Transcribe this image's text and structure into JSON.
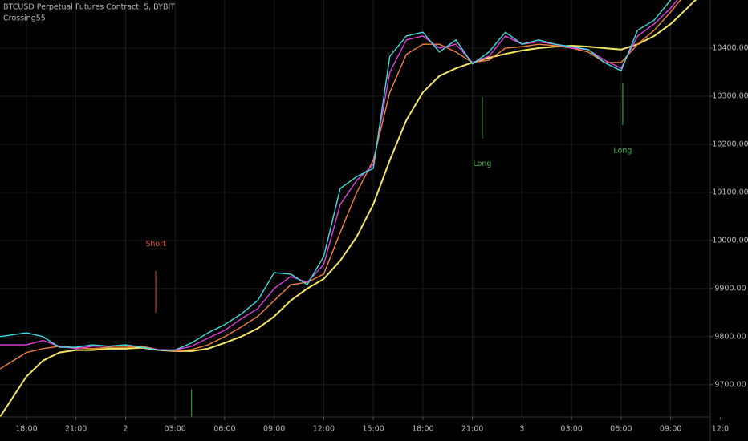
{
  "chart_data": {
    "type": "line",
    "title": "BTCUSD Perpetual Futures Contract, 5, BYBIT",
    "subtitle": "Crossing55",
    "x": [
      -1.6,
      0,
      1,
      2,
      3,
      4,
      5,
      6,
      7,
      8,
      9,
      10,
      11,
      12,
      13,
      14,
      15,
      16,
      17,
      18,
      19,
      20,
      21,
      22,
      23,
      24,
      25,
      26,
      27,
      28,
      29,
      30,
      31,
      32,
      33,
      34,
      35,
      36,
      37,
      38,
      39,
      40,
      41
    ],
    "series": [
      {
        "color": "#f5e663",
        "values": [
          9633,
          9717,
          9750,
          9767,
          9772,
          9772,
          9775,
          9775,
          9777,
          9772,
          9770,
          9770,
          9775,
          9787,
          9800,
          9817,
          9842,
          9875,
          9900,
          9920,
          9958,
          10008,
          10075,
          10167,
          10250,
          10308,
          10342,
          10358,
          10370,
          10380,
          10388,
          10395,
          10400,
          10403,
          10405,
          10403,
          10400,
          10397,
          10408,
          10425,
          10450,
          10483,
          10517
        ]
      },
      {
        "color": "#f2813a",
        "values": [
          9733,
          9767,
          9775,
          9780,
          9777,
          9775,
          9778,
          9778,
          9780,
          9773,
          9770,
          9773,
          9783,
          9800,
          9820,
          9842,
          9875,
          9908,
          9913,
          9930,
          10017,
          10100,
          10167,
          10308,
          10387,
          10408,
          10408,
          10392,
          10370,
          10375,
          10400,
          10403,
          10408,
          10405,
          10400,
          10392,
          10370,
          10370,
          10408,
          10437,
          10475,
          10517,
          10542
        ]
      },
      {
        "color": "#e040e0",
        "values": [
          9783,
          9783,
          9792,
          9780,
          9775,
          9780,
          9780,
          9783,
          9778,
          9773,
          9772,
          9780,
          9797,
          9813,
          9837,
          9858,
          9900,
          9925,
          9913,
          9950,
          10075,
          10125,
          10158,
          10350,
          10417,
          10425,
          10400,
          10408,
          10370,
          10383,
          10425,
          10408,
          10413,
          10408,
          10400,
          10397,
          10375,
          10358,
          10425,
          10450,
          10483,
          10525,
          10550
        ]
      },
      {
        "color": "#3ee0e0",
        "values": [
          9800,
          9808,
          9800,
          9778,
          9778,
          9783,
          9780,
          9783,
          9778,
          9772,
          9772,
          9787,
          9808,
          9825,
          9847,
          9875,
          9933,
          9930,
          9908,
          9967,
          10108,
          10133,
          10150,
          10383,
          10425,
          10433,
          10392,
          10417,
          10367,
          10392,
          10433,
          10408,
          10417,
          10408,
          10403,
          10397,
          10370,
          10353,
          10437,
          10458,
          10500,
          10533,
          10558
        ]
      }
    ],
    "signals": [
      {
        "x": 7.83,
        "y": [
          9850,
          9937
        ],
        "color": "#e04a3a",
        "text": "Short",
        "label_position": "above"
      },
      {
        "x": 10.0,
        "y": [
          9632,
          9690
        ],
        "color": "#3bb84a"
      },
      {
        "x": 27.6,
        "y": [
          10212,
          10298
        ],
        "color": "#3bb84a",
        "text": "Long",
        "label_position": "below"
      },
      {
        "x": 36.1,
        "y": [
          10240,
          10327
        ],
        "color": "#3bb84a",
        "text": "Long",
        "label_position": "below"
      }
    ],
    "xlim": [
      -1.6,
      41.4
    ],
    "ylim": [
      9633,
      10500
    ],
    "xticks": [
      {
        "value": 0,
        "label": "18:00"
      },
      {
        "value": 3,
        "label": "21:00"
      },
      {
        "value": 6,
        "label": "2"
      },
      {
        "value": 9,
        "label": "03:00"
      },
      {
        "value": 12,
        "label": "06:00"
      },
      {
        "value": 15,
        "label": "09:00"
      },
      {
        "value": 18,
        "label": "12:00"
      },
      {
        "value": 21,
        "label": "15:00"
      },
      {
        "value": 24,
        "label": "18:00"
      },
      {
        "value": 27,
        "label": "21:00"
      },
      {
        "value": 30,
        "label": "3"
      },
      {
        "value": 33,
        "label": "03:00"
      },
      {
        "value": 36,
        "label": "06:00"
      },
      {
        "value": 39,
        "label": "09:00"
      },
      {
        "value": 42,
        "label": "12:0"
      }
    ],
    "yticks": [
      {
        "value": 9700,
        "label": "9700.00"
      },
      {
        "value": 9800,
        "label": "9800.00"
      },
      {
        "value": 9900,
        "label": "9900.00"
      },
      {
        "value": 10000,
        "label": "10000.00"
      },
      {
        "value": 10100,
        "label": "10100.00"
      },
      {
        "value": 10200,
        "label": "10200.00"
      },
      {
        "value": 10300,
        "label": "10300.00"
      },
      {
        "value": 10400,
        "label": "10400.00"
      }
    ],
    "grid": true
  }
}
